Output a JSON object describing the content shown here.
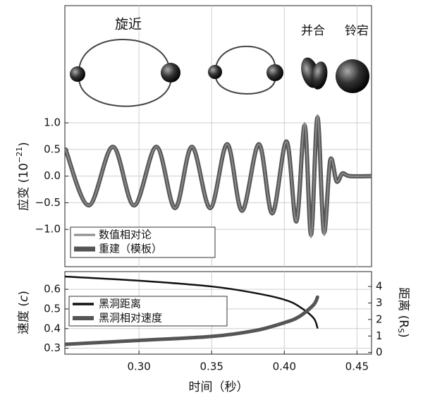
{
  "chart_data": [
    {
      "type": "line",
      "annotations": [
        "旋近",
        "并合",
        "铃宕"
      ],
      "ylabel": [
        "应变 (10",
        "−21",
        ")"
      ],
      "xlim": [
        0.249,
        0.46
      ],
      "ylim": [
        -1.7,
        3.2
      ],
      "yticks": [
        {
          "value": 1,
          "label": "1.0"
        },
        0.5,
        {
          "value": 0,
          "label": "0.0"
        },
        {
          "value": -0.5,
          "label": "−0.5"
        },
        {
          "value": -1,
          "label": "−1.0"
        }
      ],
      "grid": true,
      "x": [
        0.2495,
        0.2655,
        0.282,
        0.2966,
        0.312,
        0.3248,
        0.3364,
        0.349,
        0.3607,
        0.3709,
        0.3825,
        0.3917,
        0.4015,
        0.4083,
        0.414,
        0.4184,
        0.4228,
        0.4272,
        0.4316,
        0.436,
        0.44,
        0.445,
        0.46
      ],
      "series": [
        {
          "name": "数值相对论",
          "color": "#8a8a8a",
          "values": [
            0.5,
            -0.55,
            0.55,
            -0.55,
            0.55,
            -0.6,
            0.55,
            -0.6,
            0.6,
            -0.65,
            0.6,
            -0.7,
            0.65,
            -0.85,
            1.0,
            -1.15,
            1.15,
            -1.1,
            0.3,
            -0.1,
            0.05,
            0,
            0
          ]
        },
        {
          "name": "重建（模板）",
          "color": "#555555",
          "values": [
            0.5,
            -0.55,
            0.55,
            -0.55,
            0.55,
            -0.6,
            0.55,
            -0.6,
            0.6,
            -0.65,
            0.6,
            -0.7,
            0.65,
            -0.85,
            0.95,
            -1.1,
            1.1,
            -1.05,
            0.3,
            -0.1,
            0.05,
            0,
            0
          ]
        }
      ]
    },
    {
      "type": "line",
      "xlabel": "时间（秒）",
      "ylabel": [
        "速度 (",
        "c",
        ")"
      ],
      "y2label": [
        "距离 (R",
        "S",
        ")"
      ],
      "xlim": [
        0.249,
        0.46
      ],
      "xticks": [
        {
          "value": 0.3,
          "label": "0.30"
        },
        0.35,
        {
          "value": 0.4,
          "label": "0.40"
        },
        0.45
      ],
      "ylim": [
        0.27,
        0.69
      ],
      "yticks": [
        0.3,
        0.4,
        0.5,
        0.6
      ],
      "y2lim": [
        -0.1,
        4.9
      ],
      "y2ticks": [
        0,
        1,
        2,
        3,
        4
      ],
      "grid": true,
      "x": [
        0.249,
        0.3,
        0.35,
        0.38,
        0.4,
        0.41,
        0.42,
        0.4228
      ],
      "series": [
        {
          "name": "黑洞距离",
          "color": "#111111",
          "axis": "y2",
          "values": [
            4.6,
            4.35,
            4.0,
            3.6,
            3.2,
            2.8,
            2.1,
            1.5
          ]
        },
        {
          "name": "黑洞相对速度",
          "color": "#555555",
          "values": [
            0.32,
            0.34,
            0.36,
            0.39,
            0.43,
            0.46,
            0.52,
            0.56
          ]
        }
      ]
    }
  ]
}
